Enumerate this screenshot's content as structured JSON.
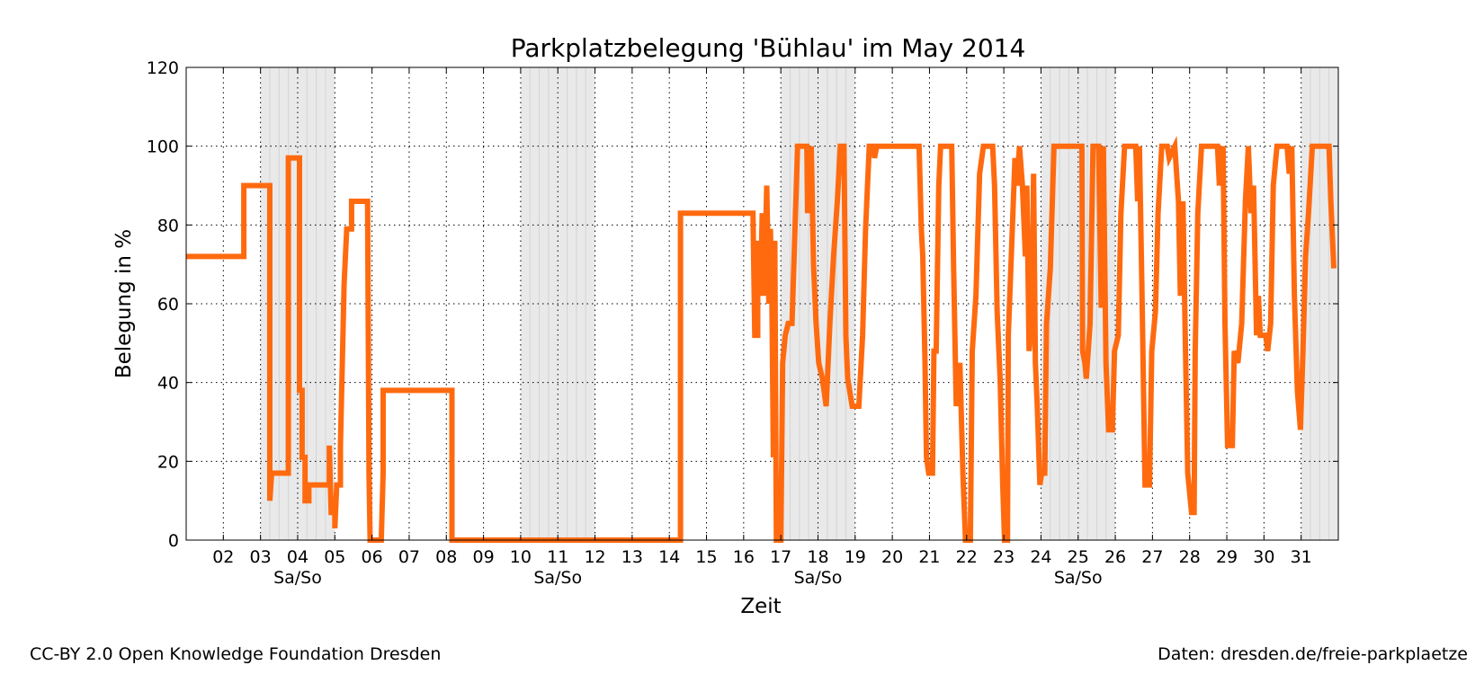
{
  "footer": {
    "left": "CC-BY 2.0 Open Knowledge Foundation Dresden",
    "right": "Daten: dresden.de/freie-parkplaetze"
  },
  "colors": {
    "line": "#ff6a0f",
    "weekend_shade": "#e9e9e9",
    "grid": "#000000"
  },
  "chart_data": {
    "type": "line",
    "title": "Parkplatzbelegung 'Bühlau' im May 2014",
    "xlabel": "Zeit",
    "ylabel": "Belegung in %",
    "xlim": [
      1,
      32
    ],
    "ylim": [
      0,
      120
    ],
    "yticks": [
      0,
      20,
      40,
      60,
      80,
      100,
      120
    ],
    "xticks": [
      {
        "x": 2,
        "label": "02"
      },
      {
        "x": 3,
        "label": "03"
      },
      {
        "x": 4,
        "label": "04"
      },
      {
        "x": 5,
        "label": "05"
      },
      {
        "x": 6,
        "label": "06"
      },
      {
        "x": 7,
        "label": "07"
      },
      {
        "x": 8,
        "label": "08"
      },
      {
        "x": 9,
        "label": "09"
      },
      {
        "x": 10,
        "label": "10"
      },
      {
        "x": 11,
        "label": "11"
      },
      {
        "x": 12,
        "label": "12"
      },
      {
        "x": 13,
        "label": "13"
      },
      {
        "x": 14,
        "label": "14"
      },
      {
        "x": 15,
        "label": "15"
      },
      {
        "x": 16,
        "label": "16"
      },
      {
        "x": 17,
        "label": "17"
      },
      {
        "x": 18,
        "label": "18"
      },
      {
        "x": 19,
        "label": "19"
      },
      {
        "x": 20,
        "label": "20"
      },
      {
        "x": 21,
        "label": "21"
      },
      {
        "x": 22,
        "label": "22"
      },
      {
        "x": 23,
        "label": "23"
      },
      {
        "x": 24,
        "label": "24"
      },
      {
        "x": 25,
        "label": "25"
      },
      {
        "x": 26,
        "label": "26"
      },
      {
        "x": 27,
        "label": "27"
      },
      {
        "x": 28,
        "label": "28"
      },
      {
        "x": 29,
        "label": "29"
      },
      {
        "x": 30,
        "label": "30"
      },
      {
        "x": 31,
        "label": "31"
      }
    ],
    "weekends": [
      {
        "start": 3,
        "end": 5,
        "label": "Sa/So"
      },
      {
        "start": 10,
        "end": 12,
        "label": "Sa/So"
      },
      {
        "start": 17,
        "end": 19,
        "label": "Sa/So"
      },
      {
        "start": 24,
        "end": 26,
        "label": "Sa/So"
      },
      {
        "start": 31,
        "end": 32,
        "label": ""
      }
    ],
    "grid": true,
    "series": [
      {
        "values": [
          [
            1.0,
            72
          ],
          [
            2.55,
            72
          ],
          [
            2.55,
            90
          ],
          [
            3.25,
            90
          ],
          [
            3.25,
            10
          ],
          [
            3.3,
            17
          ],
          [
            3.75,
            17
          ],
          [
            3.75,
            97
          ],
          [
            4.05,
            97
          ],
          [
            4.05,
            38
          ],
          [
            4.12,
            38
          ],
          [
            4.12,
            21
          ],
          [
            4.2,
            21
          ],
          [
            4.2,
            10
          ],
          [
            4.3,
            10
          ],
          [
            4.3,
            14
          ],
          [
            4.85,
            14
          ],
          [
            4.85,
            24
          ],
          [
            4.9,
            7
          ],
          [
            5.0,
            7
          ],
          [
            5.0,
            3
          ],
          [
            5.05,
            14
          ],
          [
            5.15,
            14
          ],
          [
            5.15,
            24
          ],
          [
            5.25,
            65
          ],
          [
            5.32,
            79
          ],
          [
            5.45,
            79
          ],
          [
            5.45,
            86
          ],
          [
            5.88,
            86
          ],
          [
            5.92,
            17
          ],
          [
            5.95,
            0
          ],
          [
            6.25,
            0
          ],
          [
            6.3,
            17
          ],
          [
            6.3,
            38
          ],
          [
            8.15,
            38
          ],
          [
            8.15,
            0
          ],
          [
            14.3,
            0
          ],
          [
            14.3,
            83
          ],
          [
            16.25,
            83
          ],
          [
            16.3,
            52
          ],
          [
            16.38,
            52
          ],
          [
            16.38,
            76
          ],
          [
            16.45,
            62
          ],
          [
            16.5,
            83
          ],
          [
            16.55,
            62
          ],
          [
            16.62,
            90
          ],
          [
            16.68,
            60
          ],
          [
            16.72,
            79
          ],
          [
            16.76,
            62
          ],
          [
            16.8,
            21
          ],
          [
            16.84,
            76
          ],
          [
            16.88,
            0
          ],
          [
            17.0,
            0
          ],
          [
            17.05,
            45
          ],
          [
            17.12,
            52
          ],
          [
            17.2,
            55
          ],
          [
            17.3,
            55
          ],
          [
            17.45,
            100
          ],
          [
            17.7,
            100
          ],
          [
            17.72,
            83
          ],
          [
            17.82,
            100
          ],
          [
            17.88,
            70
          ],
          [
            17.95,
            55
          ],
          [
            18.02,
            45
          ],
          [
            18.12,
            41
          ],
          [
            18.22,
            34
          ],
          [
            18.32,
            55
          ],
          [
            18.42,
            72
          ],
          [
            18.52,
            86
          ],
          [
            18.6,
            100
          ],
          [
            18.7,
            100
          ],
          [
            18.75,
            52
          ],
          [
            18.8,
            41
          ],
          [
            18.92,
            34
          ],
          [
            19.1,
            34
          ],
          [
            19.2,
            52
          ],
          [
            19.28,
            79
          ],
          [
            19.38,
            100
          ],
          [
            19.5,
            100
          ],
          [
            19.52,
            97
          ],
          [
            19.58,
            100
          ],
          [
            20.72,
            100
          ],
          [
            20.78,
            79
          ],
          [
            20.82,
            72
          ],
          [
            20.88,
            45
          ],
          [
            20.92,
            21
          ],
          [
            20.98,
            17
          ],
          [
            21.08,
            17
          ],
          [
            21.12,
            48
          ],
          [
            21.18,
            48
          ],
          [
            21.25,
            90
          ],
          [
            21.3,
            100
          ],
          [
            21.6,
            100
          ],
          [
            21.65,
            69
          ],
          [
            21.72,
            34
          ],
          [
            21.82,
            45
          ],
          [
            21.9,
            17
          ],
          [
            21.97,
            0
          ],
          [
            22.1,
            0
          ],
          [
            22.15,
            48
          ],
          [
            22.25,
            62
          ],
          [
            22.35,
            93
          ],
          [
            22.45,
            100
          ],
          [
            22.7,
            100
          ],
          [
            22.75,
            90
          ],
          [
            22.82,
            58
          ],
          [
            22.9,
            41
          ],
          [
            22.97,
            14
          ],
          [
            23.02,
            0
          ],
          [
            23.1,
            0
          ],
          [
            23.12,
            52
          ],
          [
            23.2,
            72
          ],
          [
            23.3,
            97
          ],
          [
            23.35,
            90
          ],
          [
            23.42,
            100
          ],
          [
            23.5,
            90
          ],
          [
            23.58,
            72
          ],
          [
            23.62,
            90
          ],
          [
            23.68,
            48
          ],
          [
            23.75,
            55
          ],
          [
            23.8,
            93
          ],
          [
            23.85,
            45
          ],
          [
            23.9,
            34
          ],
          [
            23.97,
            14
          ],
          [
            24.02,
            17
          ],
          [
            24.1,
            17
          ],
          [
            24.15,
            55
          ],
          [
            24.25,
            69
          ],
          [
            24.35,
            100
          ],
          [
            25.1,
            100
          ],
          [
            25.12,
            48
          ],
          [
            25.18,
            45
          ],
          [
            25.22,
            41
          ],
          [
            25.32,
            55
          ],
          [
            25.4,
            100
          ],
          [
            25.55,
            100
          ],
          [
            25.62,
            59
          ],
          [
            25.68,
            100
          ],
          [
            25.75,
            45
          ],
          [
            25.82,
            28
          ],
          [
            25.92,
            28
          ],
          [
            25.98,
            48
          ],
          [
            26.08,
            52
          ],
          [
            26.15,
            83
          ],
          [
            26.25,
            100
          ],
          [
            26.55,
            100
          ],
          [
            26.6,
            86
          ],
          [
            26.65,
            100
          ],
          [
            26.72,
            62
          ],
          [
            26.8,
            14
          ],
          [
            26.92,
            14
          ],
          [
            26.98,
            48
          ],
          [
            27.08,
            58
          ],
          [
            27.15,
            83
          ],
          [
            27.25,
            100
          ],
          [
            27.4,
            100
          ],
          [
            27.45,
            97
          ],
          [
            27.6,
            100
          ],
          [
            27.7,
            86
          ],
          [
            27.75,
            62
          ],
          [
            27.82,
            86
          ],
          [
            27.88,
            52
          ],
          [
            27.95,
            17
          ],
          [
            28.05,
            7
          ],
          [
            28.12,
            7
          ],
          [
            28.15,
            48
          ],
          [
            28.22,
            83
          ],
          [
            28.32,
            100
          ],
          [
            28.75,
            100
          ],
          [
            28.8,
            90
          ],
          [
            28.9,
            100
          ],
          [
            28.95,
            55
          ],
          [
            29.02,
            24
          ],
          [
            29.15,
            24
          ],
          [
            29.2,
            48
          ],
          [
            29.3,
            45
          ],
          [
            29.4,
            55
          ],
          [
            29.5,
            86
          ],
          [
            29.58,
            100
          ],
          [
            29.65,
            83
          ],
          [
            29.72,
            90
          ],
          [
            29.8,
            52
          ],
          [
            29.85,
            62
          ],
          [
            29.9,
            52
          ],
          [
            30.05,
            52
          ],
          [
            30.1,
            48
          ],
          [
            30.18,
            55
          ],
          [
            30.25,
            90
          ],
          [
            30.35,
            100
          ],
          [
            30.62,
            100
          ],
          [
            30.68,
            93
          ],
          [
            30.75,
            100
          ],
          [
            30.82,
            62
          ],
          [
            30.9,
            38
          ],
          [
            30.98,
            28
          ],
          [
            31.05,
            48
          ],
          [
            31.12,
            72
          ],
          [
            31.2,
            83
          ],
          [
            31.3,
            100
          ],
          [
            31.75,
            100
          ],
          [
            31.8,
            86
          ],
          [
            31.88,
            69
          ]
        ]
      }
    ]
  }
}
